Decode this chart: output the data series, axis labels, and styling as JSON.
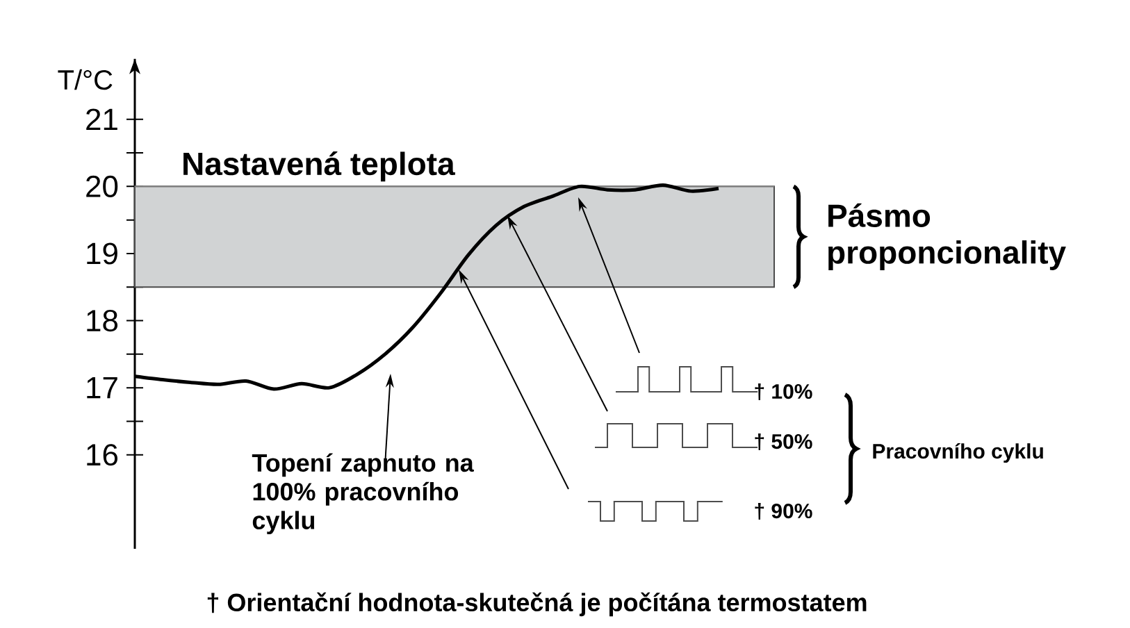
{
  "chart_data": {
    "type": "line",
    "ylabel": "T/°C",
    "categories": [
      null,
      null,
      null,
      null,
      null,
      null,
      null,
      null,
      null,
      null,
      null,
      null,
      null,
      null,
      null,
      null,
      null,
      null,
      null,
      null,
      null,
      null
    ],
    "series": [
      {
        "color": "#000000",
        "values": [
          17.17,
          17.12,
          17.08,
          17.05,
          17.1,
          16.98,
          17.06,
          17.0,
          17.2,
          17.5,
          17.9,
          18.41,
          18.98,
          19.42,
          19.7,
          19.85,
          20.0,
          19.95,
          19.95,
          20.02,
          19.93,
          19.97
        ]
      }
    ],
    "ylim": [
      14.6,
      21.9
    ],
    "yticks": [
      16,
      {
        "value": 16.5,
        "label": null
      },
      17,
      {
        "value": 17.5,
        "label": null
      },
      18,
      {
        "value": 18.5,
        "label": null
      },
      19,
      {
        "value": 19.5,
        "label": null
      },
      20,
      {
        "value": 20.5,
        "label": null
      },
      21
    ],
    "ref_lines": [
      {
        "axis": "y",
        "value": 20,
        "label": "Nastavená teplota",
        "color": "#808080"
      }
    ],
    "bands": [
      {
        "axis": "y",
        "from": 18.5,
        "to": 20,
        "label": "Pásmo proponcionality",
        "color": "#d1d3d4"
      }
    ],
    "annotations": [
      "Topení zapnuto na 100% pracovního cyklu",
      "† 10%",
      "† 50%",
      "† 90%",
      "Pracovního cyklu",
      "† Orientační hodnota-skutečná je počítána termostatem"
    ]
  }
}
